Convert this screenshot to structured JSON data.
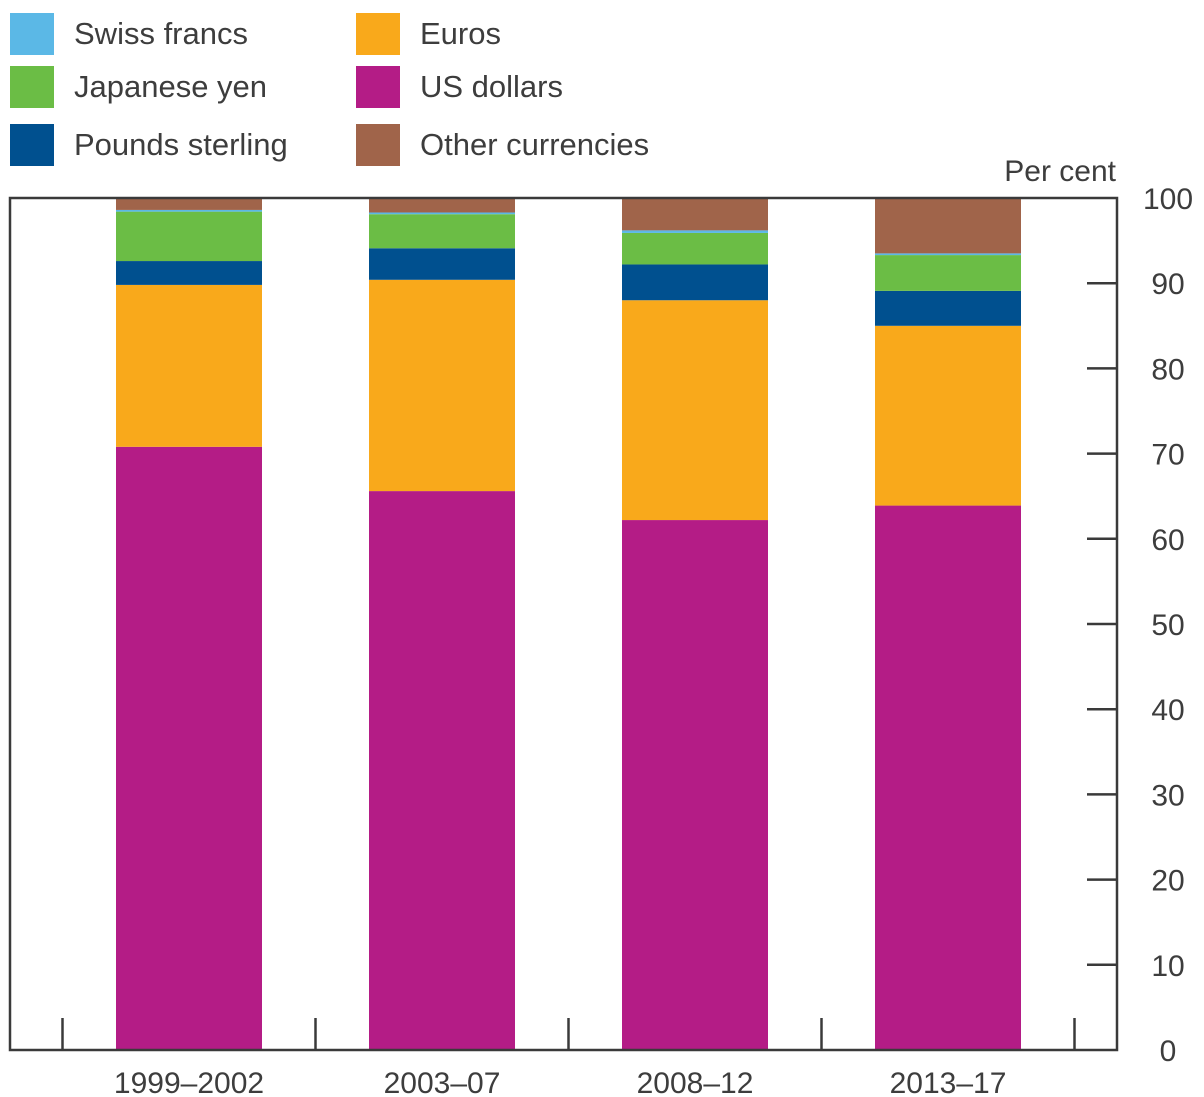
{
  "legend": [
    {
      "label": "Swiss francs",
      "color": "#5bb8e6"
    },
    {
      "label": "Euros",
      "color": "#f9a91b"
    },
    {
      "label": "Japanese yen",
      "color": "#6bbd45"
    },
    {
      "label": "US dollars",
      "color": "#b41c86"
    },
    {
      "label": "Pounds sterling",
      "color": "#00508f"
    },
    {
      "label": "Other currencies",
      "color": "#a0644a"
    }
  ],
  "chart_data": {
    "type": "bar",
    "stacked": true,
    "categories": [
      "1999–2002",
      "2003–07",
      "2008–12",
      "2013–17"
    ],
    "series": [
      {
        "name": "US dollars",
        "color": "#b41c86",
        "values": [
          70.8,
          65.6,
          62.2,
          63.9
        ]
      },
      {
        "name": "Euros",
        "color": "#f9a91b",
        "values": [
          19.0,
          24.8,
          25.8,
          21.1
        ]
      },
      {
        "name": "Pounds sterling",
        "color": "#00508f",
        "values": [
          2.8,
          3.7,
          4.2,
          4.1
        ]
      },
      {
        "name": "Japanese yen",
        "color": "#6bbd45",
        "values": [
          5.8,
          4.0,
          3.7,
          4.2
        ]
      },
      {
        "name": "Swiss francs",
        "color": "#5bb8e6",
        "values": [
          0.2,
          0.2,
          0.3,
          0.2
        ]
      },
      {
        "name": "Other currencies",
        "color": "#a0644a",
        "values": [
          1.4,
          1.7,
          3.8,
          6.5
        ]
      }
    ],
    "unit_label": "Per cent",
    "yticks": [
      "0",
      "10",
      "20",
      "30",
      "40",
      "50",
      "60",
      "70",
      "80",
      "90",
      "100"
    ],
    "ylim": [
      0,
      100
    ],
    "axis_position": "right",
    "grid": false,
    "legend_position": "top-left"
  }
}
